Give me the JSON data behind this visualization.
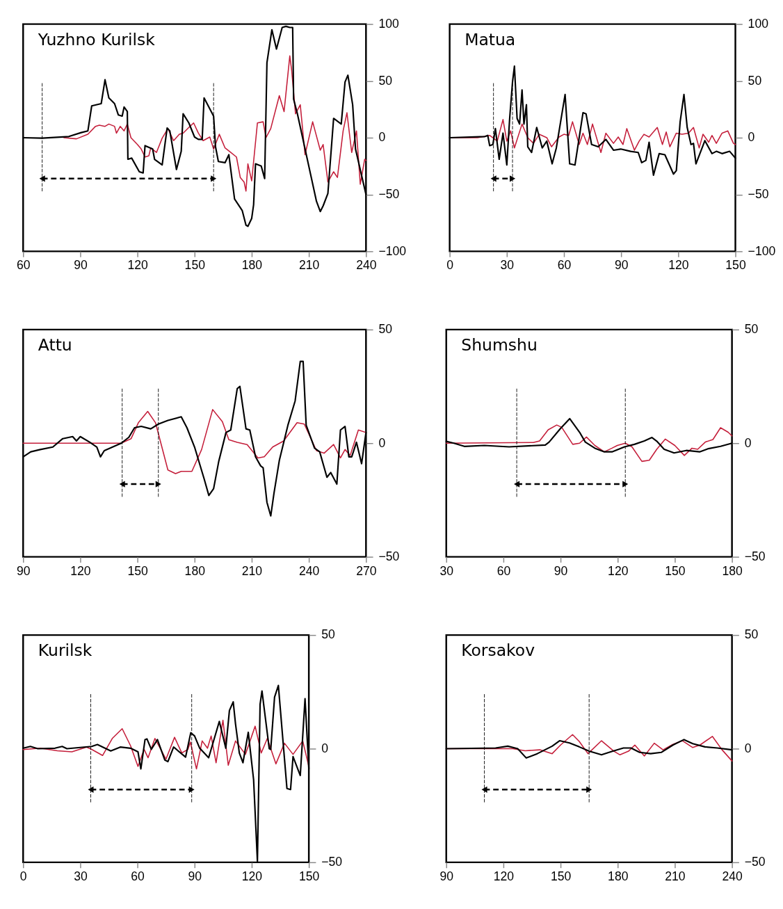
{
  "chart_data": [
    {
      "type": "line",
      "title": "Yuzhno Kurilsk",
      "xlim": [
        60,
        240
      ],
      "xticks": [
        60,
        90,
        120,
        150,
        180,
        210,
        240
      ],
      "ylim": [
        -100,
        100
      ],
      "yticks": [
        -100,
        -50,
        0,
        50,
        100
      ],
      "series": [
        {
          "color": "#c41e3a",
          "x": [
            81.4,
            88,
            94,
            98,
            100,
            103,
            105,
            108,
            109,
            111,
            113,
            114.7,
            116.6,
            120,
            122,
            124,
            126,
            127,
            130,
            133,
            136,
            139,
            142,
            144,
            147,
            149.5,
            152,
            154.5,
            158,
            160,
            163,
            166,
            169,
            172,
            174,
            176,
            177,
            178,
            180,
            183,
            186,
            187.5,
            190,
            194.5,
            197,
            200,
            201,
            203,
            205.5,
            208,
            212,
            216,
            217.5,
            220,
            223,
            225,
            228,
            230,
            232.5,
            235,
            237,
            239.3,
            240
          ],
          "values": [
            0,
            -1,
            3,
            10,
            11,
            10,
            12,
            10,
            4,
            10,
            6,
            12,
            0,
            -6,
            -10,
            -17,
            -16,
            -9,
            -13,
            -0.4,
            8,
            -2.6,
            3,
            4,
            9,
            13,
            4,
            -2.6,
            0.6,
            -10,
            3,
            -9,
            -13,
            -17,
            -35,
            -39,
            -47,
            -23,
            -38,
            13,
            14,
            0,
            8,
            37,
            23,
            72,
            59,
            21,
            29,
            -15,
            14,
            -11,
            -6,
            -39,
            -30,
            -35,
            6,
            22,
            -13,
            6,
            -41,
            -19,
            -20
          ]
        },
        {
          "color": "#000000",
          "x": [
            60,
            70,
            84,
            90.5,
            94,
            96,
            101,
            103,
            105,
            108,
            110,
            112,
            113,
            114.7,
            115,
            117,
            121,
            123,
            124,
            128,
            129,
            133,
            135.6,
            137,
            140.5,
            143,
            144,
            147,
            150,
            152,
            154,
            155,
            160,
            161,
            162.5,
            166,
            168,
            171,
            175,
            177,
            178,
            180,
            181,
            182,
            185,
            186.8,
            188,
            190.6,
            193,
            196,
            198,
            200,
            201.5,
            202,
            204,
            214,
            216,
            217.5,
            220,
            223,
            227,
            229,
            230.5,
            233,
            234.5,
            240
          ],
          "values": [
            0,
            -0.4,
            1,
            4.5,
            6,
            28,
            30,
            51,
            35,
            30,
            20,
            19,
            27,
            23,
            -19,
            -18,
            -30,
            -31,
            -7,
            -10,
            -19,
            -24,
            8.5,
            6,
            -28,
            -12,
            21,
            13,
            0.6,
            -1.5,
            -1.5,
            35,
            19,
            -8,
            -21,
            -22,
            -15,
            -54,
            -64,
            -77,
            -78,
            -71,
            -59,
            -23,
            -25,
            -36,
            66,
            95,
            78,
            97,
            98,
            97,
            97,
            34,
            21,
            -56,
            -65,
            -60,
            -49,
            17,
            12,
            49,
            55,
            29,
            -10,
            -50
          ]
        }
      ],
      "ref_lines": [
        {
          "axis": "x",
          "value": 70
        },
        {
          "axis": "x",
          "value": 160
        }
      ]
    },
    {
      "type": "line",
      "title": "Matua",
      "xlim": [
        0,
        150
      ],
      "xticks": [
        0,
        30,
        60,
        90,
        120,
        150
      ],
      "ylim": [
        -100,
        100
      ],
      "yticks": [
        -100,
        -50,
        0,
        50,
        100
      ],
      "series": [
        {
          "color": "#c41e3a",
          "x": [
            0,
            14.6,
            21,
            25,
            28,
            30,
            32,
            34,
            38,
            41,
            44,
            47,
            51,
            53.5,
            57.4,
            60,
            62.5,
            64.5,
            68,
            70,
            72.3,
            75,
            79.4,
            82,
            86,
            88.5,
            91,
            93,
            97,
            99.5,
            102,
            104.7,
            109,
            111.7,
            113.7,
            115.6,
            119,
            122,
            125.4,
            128,
            131,
            133,
            136,
            137.7,
            140,
            143,
            146,
            149,
            150
          ],
          "values": [
            0,
            0,
            2,
            -3,
            16,
            -3,
            6,
            -9,
            12,
            0,
            -5,
            3,
            0,
            -8,
            0.6,
            3,
            2,
            14,
            -6,
            4,
            -6,
            12,
            -13,
            4,
            -5,
            0.6,
            -6,
            8,
            -11,
            -3,
            3,
            0.6,
            9,
            -6,
            5,
            -8,
            4,
            3,
            4,
            9,
            -9,
            3,
            -4,
            2,
            -5,
            4,
            6,
            -5,
            -6
          ]
        },
        {
          "color": "#000000",
          "x": [
            0,
            18.5,
            20,
            21,
            22.7,
            24,
            26,
            28,
            30,
            31.5,
            33,
            34,
            35.4,
            36.7,
            38,
            39,
            40.3,
            41,
            43,
            45.7,
            48.6,
            51,
            53.8,
            56,
            60.6,
            63,
            65.8,
            70,
            71.6,
            74.5,
            78,
            82,
            86,
            89.8,
            95,
            99,
            100.8,
            103,
            104.7,
            107,
            110,
            113,
            117.5,
            119,
            121,
            123,
            124.7,
            126.7,
            128,
            129.3,
            134,
            137.7,
            140,
            143,
            147,
            150
          ],
          "values": [
            0,
            1,
            2,
            -7,
            -6,
            8,
            -19,
            4,
            -24,
            17,
            49,
            63,
            17,
            12,
            42,
            12,
            29,
            -8,
            -13,
            9,
            -9,
            -3,
            -23,
            -9,
            38,
            -23,
            -24,
            22,
            21,
            -6,
            -8,
            -1.5,
            -11,
            -10,
            -12,
            -13,
            -22,
            -20,
            -4,
            -33,
            -14,
            -15,
            -32,
            -29,
            14,
            38,
            9,
            -6,
            -5,
            -23,
            -2.6,
            -14,
            -12,
            -14,
            -12,
            -18
          ]
        }
      ],
      "ref_lines": [
        {
          "axis": "x",
          "value": 23
        },
        {
          "axis": "x",
          "value": 33
        }
      ]
    },
    {
      "type": "line",
      "title": "Attu",
      "xlim": [
        90,
        270
      ],
      "xticks": [
        90,
        120,
        150,
        180,
        210,
        240,
        270
      ],
      "ylim": [
        -50,
        50
      ],
      "yticks": [
        -50,
        0,
        50
      ],
      "series": [
        {
          "color": "#c41e3a",
          "x": [
            90,
            141.5,
            146.7,
            150.5,
            155.4,
            159.5,
            166,
            170,
            173,
            178.6,
            183.7,
            189.5,
            194.6,
            198,
            202.4,
            207.6,
            213.3,
            216.6,
            221,
            226.8,
            233.8,
            237.6,
            244,
            248,
            253,
            256.6,
            259,
            261.7,
            266,
            270
          ],
          "values": [
            0,
            0,
            2,
            9,
            14,
            9,
            -11.8,
            -13.4,
            -12.4,
            -12.4,
            -2.8,
            14.8,
            9.5,
            1.5,
            0.4,
            -0.6,
            -6.5,
            -6,
            -1.7,
            1,
            9,
            8.4,
            -3.3,
            -4.4,
            -0.6,
            -6.5,
            -2.8,
            -5.4,
            5.8,
            4.7
          ]
        },
        {
          "color": "#000000",
          "x": [
            90,
            94,
            99,
            105.6,
            110.8,
            116,
            118,
            120,
            125,
            128.7,
            130.6,
            132.6,
            141.5,
            145.5,
            148.5,
            152,
            157,
            161,
            166,
            173,
            176,
            180,
            185,
            187.5,
            190,
            192.7,
            196.5,
            199,
            202.4,
            203.8,
            207,
            209,
            212,
            214.7,
            216,
            218,
            220,
            221.7,
            224.5,
            229,
            232.8,
            235.5,
            237,
            238.6,
            243,
            245.7,
            249.5,
            251.5,
            254.7,
            256.6,
            259,
            261,
            262.5,
            265,
            267.7,
            270
          ],
          "values": [
            -6,
            -3.8,
            -2.8,
            -1.7,
            2,
            2.9,
            1,
            2.9,
            0.4,
            -1.7,
            -6,
            -3.3,
            0,
            2.6,
            6.8,
            7.4,
            6.3,
            8.4,
            10,
            11.6,
            6.8,
            -1.7,
            -15.6,
            -23,
            -20,
            -8,
            4.7,
            5.8,
            24,
            25,
            6.3,
            5.8,
            -6,
            -10,
            -10.8,
            -26,
            -32,
            -22,
            -7.6,
            7.9,
            18.6,
            36,
            36,
            7.9,
            -2.2,
            -3.8,
            -15,
            -12.9,
            -18,
            5.8,
            7.4,
            -6,
            -6,
            0.4,
            -9,
            4.7
          ]
        }
      ],
      "ref_lines": [
        {
          "axis": "x",
          "value": 142
        },
        {
          "axis": "x",
          "value": 161
        }
      ]
    },
    {
      "type": "line",
      "title": "Shumshu",
      "xlim": [
        30,
        180
      ],
      "xticks": [
        30,
        60,
        90,
        120,
        150,
        180
      ],
      "ylim": [
        -50,
        50
      ],
      "yticks": [
        -50,
        0,
        50
      ],
      "series": [
        {
          "color": "#c41e3a",
          "x": [
            30,
            75.7,
            79,
            83.5,
            88,
            90.6,
            96.4,
            100,
            103.6,
            108,
            113,
            117,
            119.8,
            124,
            127.5,
            132.7,
            136.6,
            140.5,
            145,
            150,
            155,
            159,
            162,
            166,
            170,
            174,
            178,
            180
          ],
          "values": [
            0,
            0.3,
            1,
            5.9,
            8,
            7,
            -0.5,
            0,
            2.7,
            -1,
            -3.8,
            -2.2,
            -1,
            0,
            -1.6,
            -8,
            -7.5,
            -2.7,
            1.8,
            -1,
            -5.4,
            -2.2,
            -2.7,
            0.5,
            1.6,
            6.8,
            4.8,
            3.2
          ]
        },
        {
          "color": "#000000",
          "x": [
            30,
            34,
            39.5,
            50,
            63,
            82,
            84,
            90,
            94.8,
            100,
            103,
            108,
            113,
            117,
            123.6,
            128.8,
            134,
            138,
            140.5,
            144.4,
            149.6,
            156,
            163,
            167.6,
            174,
            180
          ],
          "values": [
            0.8,
            0,
            -1.4,
            -1,
            -1.6,
            -0.8,
            0.5,
            6.5,
            10.8,
            4.8,
            0.5,
            -2.2,
            -3.8,
            -3.8,
            -1.6,
            -0.5,
            1,
            2.5,
            0.9,
            -2.7,
            -4.3,
            -3.2,
            -3.8,
            -2.4,
            -1.4,
            0
          ]
        }
      ],
      "ref_lines": [
        {
          "axis": "x",
          "value": 67
        },
        {
          "axis": "x",
          "value": 124
        }
      ]
    },
    {
      "type": "line",
      "title": "Kurilsk",
      "xlim": [
        0,
        150
      ],
      "xticks": [
        0,
        30,
        60,
        90,
        120,
        150
      ],
      "ylim": [
        -50,
        50
      ],
      "yticks": [
        -50,
        0,
        50
      ],
      "series": [
        {
          "color": "#c41e3a",
          "x": [
            0,
            9,
            18,
            25.6,
            33.3,
            36,
            41.7,
            46.8,
            52,
            56.4,
            60.3,
            63.5,
            65.6,
            69.2,
            75,
            79.5,
            83.3,
            86.5,
            87.8,
            91,
            94,
            96.8,
            98.7,
            101.3,
            104.9,
            107.7,
            111.5,
            116.7,
            121.8,
            125,
            128.2,
            132.7,
            137.2,
            141.7,
            146.8,
            150
          ],
          "values": [
            -0.4,
            0.2,
            -0.9,
            -1.4,
            0.7,
            -0.3,
            -3,
            4.5,
            8.8,
            1.3,
            -7.8,
            -0.3,
            -4,
            4.5,
            -4.6,
            5,
            -1.9,
            -0.3,
            2.9,
            -8.9,
            3.4,
            0.2,
            5.6,
            -6.2,
            12.5,
            -7.3,
            3.4,
            -2.5,
            9.9,
            -1.9,
            4.5,
            -6.7,
            2.4,
            -2.5,
            3.4,
            -7.8
          ]
        },
        {
          "color": "#000000",
          "x": [
            0,
            3.8,
            7.7,
            16.7,
            20.5,
            23,
            36,
            39,
            46,
            51,
            56.4,
            60.3,
            61.8,
            64,
            65,
            67.3,
            70.5,
            74.4,
            76,
            79,
            85.3,
            88,
            90,
            92.7,
            97.4,
            103,
            106.4,
            108.3,
            110.3,
            111.5,
            113.5,
            115.4,
            118.2,
            121,
            123,
            124.4,
            125.4,
            129.2,
            130,
            132,
            134,
            138.5,
            140.4,
            141.7,
            145.5,
            148,
            150
          ],
          "values": [
            0.2,
            1,
            0,
            0.2,
            1,
            0,
            1,
            1.8,
            -1,
            0.7,
            0.2,
            -1.4,
            -8.9,
            4,
            4.3,
            -0.3,
            4,
            -5,
            -5.7,
            0.7,
            -3.7,
            7,
            5.6,
            0.2,
            -4,
            12,
            0.2,
            16.8,
            20.6,
            10.9,
            -1.9,
            -6.2,
            7.2,
            -13.7,
            -49.6,
            19.5,
            25.4,
            0,
            -0.3,
            22.7,
            27.8,
            -17.5,
            -18,
            -3.5,
            -11.8,
            22,
            -8.9
          ]
        }
      ],
      "ref_lines": [
        {
          "axis": "x",
          "value": 35.5
        },
        {
          "axis": "x",
          "value": 88.5
        }
      ]
    },
    {
      "type": "line",
      "title": "Korsakov",
      "xlim": [
        90,
        240
      ],
      "xticks": [
        90,
        120,
        150,
        180,
        210,
        240
      ],
      "ylim": [
        -50,
        50
      ],
      "yticks": [
        -50,
        0,
        50
      ],
      "series": [
        {
          "color": "#c41e3a",
          "x": [
            90,
            125,
            131.4,
            139.1,
            145.6,
            150,
            156.3,
            159.8,
            164.4,
            171.5,
            178,
            181.2,
            185.7,
            189,
            194,
            199.2,
            203.8,
            209,
            214,
            219.4,
            223.2,
            229.7,
            234.8,
            240
          ],
          "values": [
            0,
            0,
            -0.9,
            -0.5,
            -2.2,
            1.6,
            6.2,
            3.2,
            -2.2,
            3.5,
            -1.1,
            -2.7,
            -1.1,
            1.6,
            -3.2,
            2.4,
            -0.5,
            1.9,
            3.5,
            0.5,
            1.6,
            5.4,
            -0.5,
            -5.4
          ]
        },
        {
          "color": "#000000",
          "x": [
            90,
            115.9,
            122.3,
            127.5,
            132,
            137.8,
            145.6,
            149.5,
            154.7,
            159.8,
            165,
            171.5,
            176.6,
            183,
            187,
            191.5,
            197.3,
            203,
            209,
            214.8,
            219.4,
            225.8,
            232.3,
            240
          ],
          "values": [
            0,
            0.3,
            1.1,
            0,
            -4.1,
            -2.2,
            1.1,
            3.5,
            2.5,
            0.8,
            -1.1,
            -2.7,
            -1.3,
            0.3,
            0.3,
            -1.6,
            -2.2,
            -1.6,
            1.6,
            4,
            2.2,
            0.8,
            0.3,
            -0.5
          ]
        }
      ],
      "ref_lines": [
        {
          "axis": "x",
          "value": 110
        },
        {
          "axis": "x",
          "value": 165
        }
      ]
    }
  ]
}
